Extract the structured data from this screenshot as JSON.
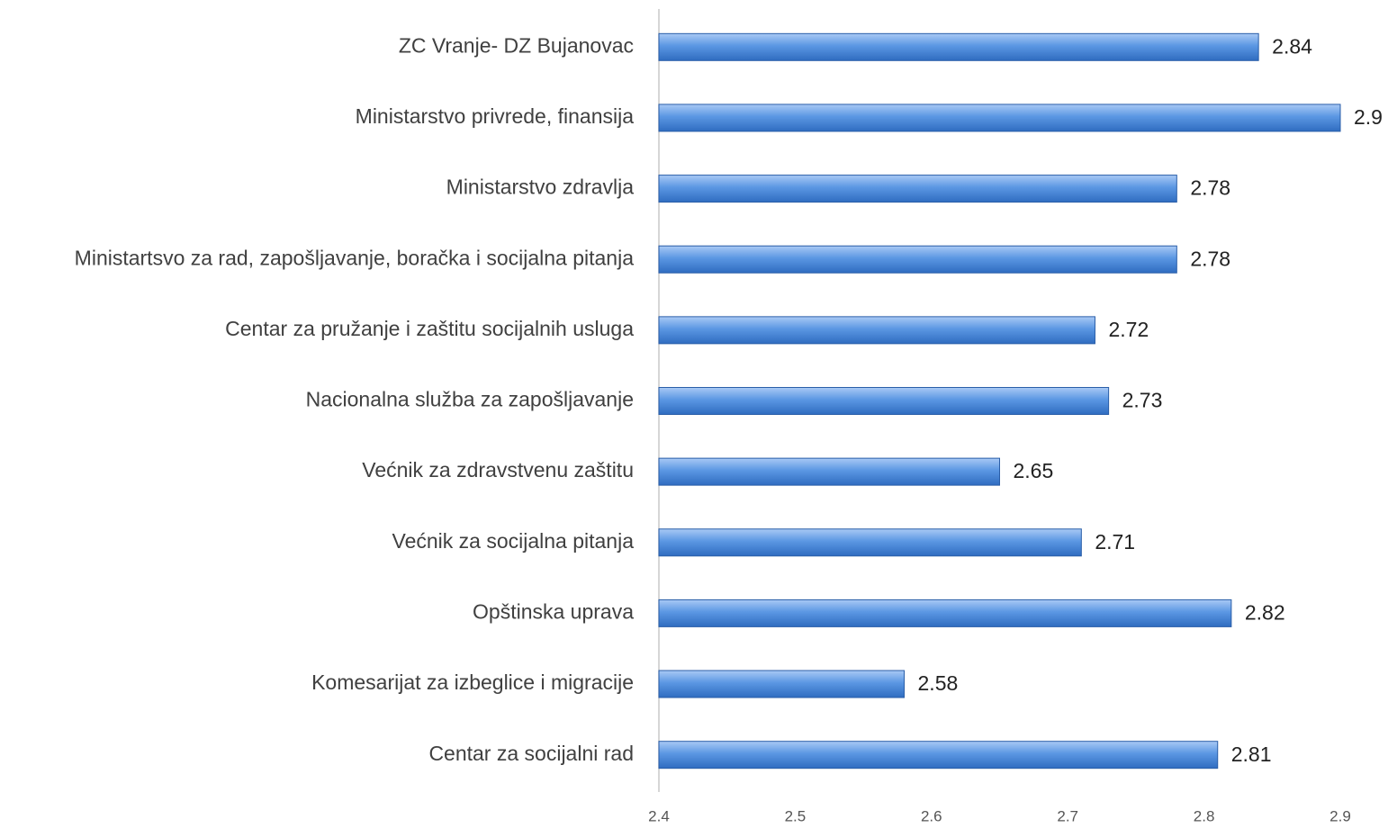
{
  "chart_data": {
    "type": "hbar",
    "categories": [
      "ZC Vranje- DZ Bujanovac",
      "Ministarstvo privrede, finansija",
      "Ministarstvo zdravlja",
      "Ministartsvo za rad, zapošljavanje, boračka i socijalna pitanja",
      "Centar za pružanje i zaštitu socijalnih usluga",
      "Nacionalna služba za zapošljavanje",
      "Većnik za zdravstvenu zaštitu",
      "Većnik za socijalna pitanja",
      "Opštinska uprava",
      "Komesarijat za izbeglice i migracije",
      "Centar za socijalni rad"
    ],
    "values": [
      2.84,
      2.9,
      2.78,
      2.78,
      2.72,
      2.73,
      2.65,
      2.71,
      2.82,
      2.58,
      2.81
    ],
    "color": "#4f8fe0",
    "xlim": [
      2.4,
      2.9
    ],
    "xticks": [
      2.4,
      2.5,
      2.6,
      2.7,
      2.8,
      2.9
    ],
    "grid": false
  }
}
